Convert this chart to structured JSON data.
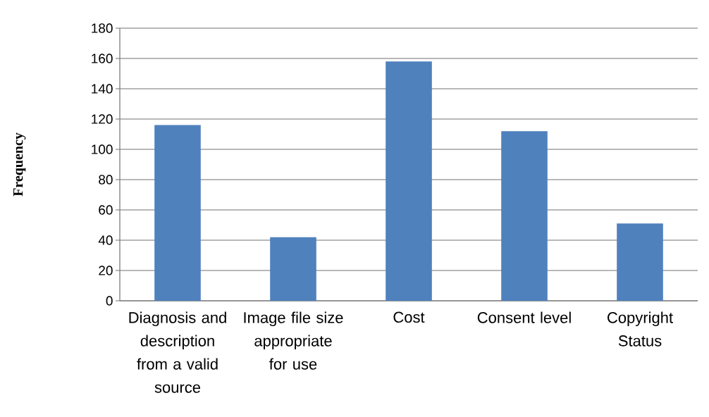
{
  "chart_data": {
    "type": "bar",
    "ylabel": "Frequency",
    "categories": [
      "Diagnosis and description from a valid source",
      "Image file size appropriate for use",
      "Cost",
      "Consent level",
      "Copyright Status"
    ],
    "values": [
      116,
      42,
      158,
      112,
      51
    ],
    "color": "#4f81bd",
    "ylim": [
      0,
      180
    ],
    "yticks": [
      0,
      20,
      40,
      60,
      80,
      100,
      120,
      140,
      160,
      180
    ],
    "grid": "y"
  }
}
